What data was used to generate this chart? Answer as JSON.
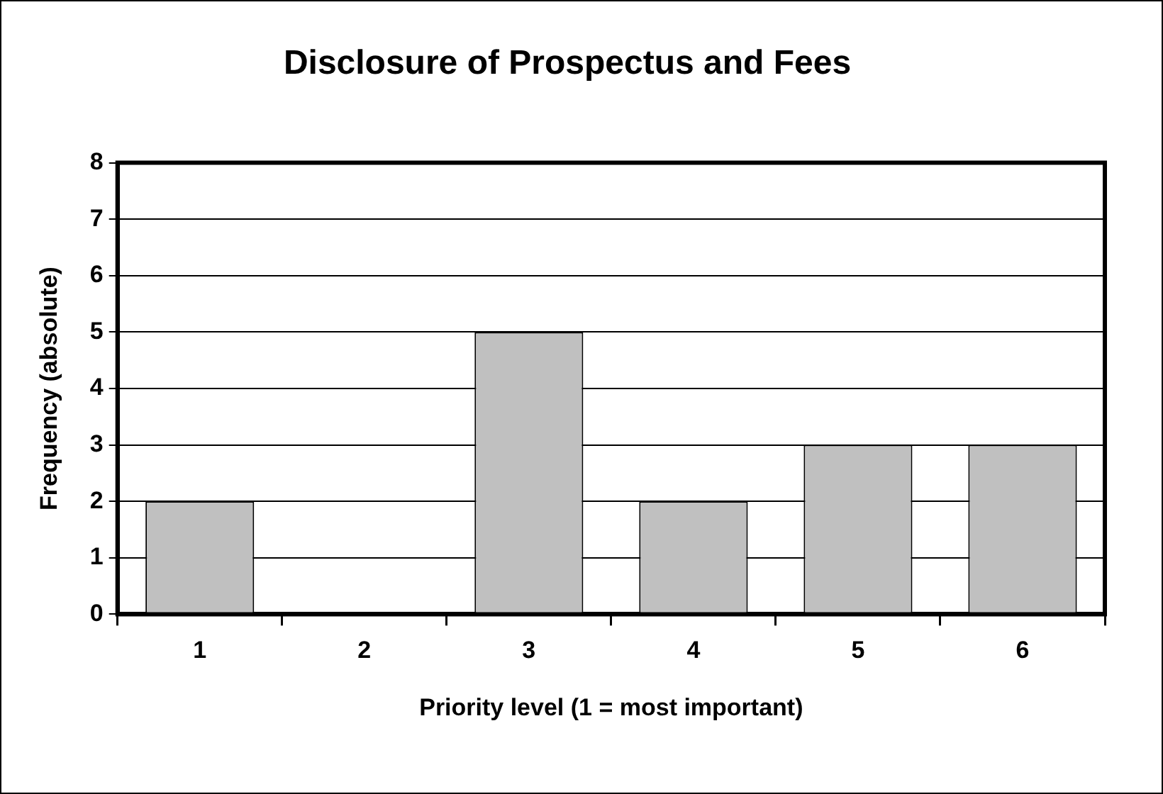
{
  "chart_data": {
    "type": "bar",
    "title": "Disclosure of Prospectus and Fees",
    "xlabel": "Priority level (1 = most important)",
    "ylabel": "Frequency (absolute)",
    "categories": [
      "1",
      "2",
      "3",
      "4",
      "5",
      "6"
    ],
    "values": [
      2,
      0,
      5,
      2,
      3,
      3
    ],
    "color": "#c0c0c0",
    "ylim": [
      0,
      8
    ],
    "yticks": [
      0,
      1,
      2,
      3,
      4,
      5,
      6,
      7,
      8
    ],
    "grid": "y",
    "legend": false
  }
}
